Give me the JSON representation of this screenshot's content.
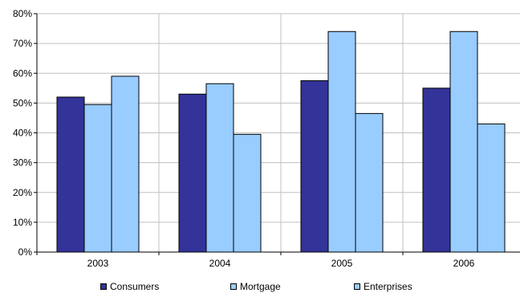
{
  "chart_data": {
    "type": "bar",
    "categories": [
      "2003",
      "2004",
      "2005",
      "2006"
    ],
    "series": [
      {
        "name": "Consumers",
        "values": [
          52,
          53,
          57.5,
          55
        ],
        "color": "#333399"
      },
      {
        "name": "Mortgage",
        "values": [
          49.5,
          56.5,
          74,
          74
        ],
        "color": "#99ccff"
      },
      {
        "name": "Enterprises",
        "values": [
          59,
          39.5,
          46.5,
          43
        ],
        "color": "#99ccff"
      }
    ],
    "y_ticks": [
      "0%",
      "10%",
      "20%",
      "30%",
      "40%",
      "50%",
      "60%",
      "70%",
      "80%"
    ],
    "ylim": [
      0,
      80
    ],
    "y_unit": "percent",
    "grid": true,
    "legend_position": "bottom",
    "title": "",
    "xlabel": "",
    "ylabel": ""
  }
}
